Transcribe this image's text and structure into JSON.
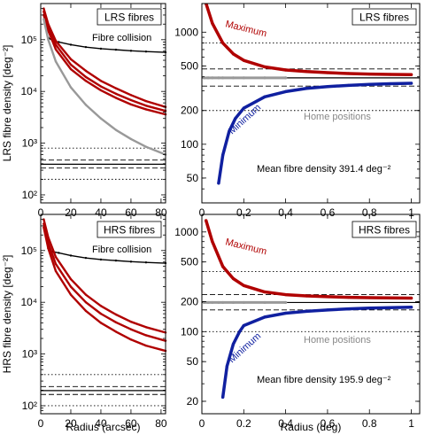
{
  "chart_data": [
    {
      "panel": "top-left",
      "type": "line",
      "label": "LRS fibres",
      "ylabel": "LRS fibre density [deg⁻²]",
      "xlabel": "",
      "xlim": [
        0,
        83
      ],
      "ylim": [
        70,
        500000
      ],
      "yscale": "log",
      "xticks": [
        0,
        20,
        40,
        60,
        80
      ],
      "yticks": [
        100,
        1000,
        10000,
        100000
      ],
      "ytick_labels": [
        "10²",
        "10³",
        "10⁴",
        "10⁵"
      ],
      "annotations": [
        {
          "text": "Fibre collision",
          "color": "#000000"
        }
      ],
      "reference_lines": [
        {
          "style": "solid",
          "y": 391.4
        },
        {
          "style": "dashed",
          "y": 330
        },
        {
          "style": "dashed",
          "y": 470
        },
        {
          "style": "dotted",
          "y": 200
        },
        {
          "style": "dotted",
          "y": 800
        }
      ],
      "series": [
        {
          "color": "#000000",
          "x": [
            5,
            8,
            12,
            20,
            30,
            40,
            50,
            60,
            70,
            83
          ],
          "y": [
            110000,
            95000,
            90000,
            80000,
            72000,
            67000,
            64000,
            61000,
            59000,
            57000
          ]
        },
        {
          "color": "#b00000",
          "x": [
            2,
            5,
            10,
            20,
            30,
            40,
            50,
            60,
            70,
            83
          ],
          "y": [
            400000,
            200000,
            95000,
            42000,
            25000,
            16000,
            11500,
            8500,
            6500,
            5000
          ]
        },
        {
          "color": "#b00000",
          "x": [
            2,
            5,
            10,
            20,
            30,
            40,
            50,
            60,
            70,
            83
          ],
          "y": [
            350000,
            170000,
            80000,
            33000,
            19000,
            12500,
            9000,
            6800,
            5300,
            4200
          ]
        },
        {
          "color": "#b00000",
          "x": [
            2,
            5,
            10,
            20,
            30,
            40,
            50,
            60,
            70,
            83
          ],
          "y": [
            300000,
            150000,
            65000,
            27000,
            16000,
            10500,
            7500,
            5600,
            4500,
            3600
          ]
        },
        {
          "color": "#999999",
          "x": [
            2,
            5,
            10,
            20,
            30,
            40,
            50,
            60,
            70,
            83
          ],
          "y": [
            250000,
            100000,
            38000,
            12000,
            5500,
            3000,
            1800,
            1200,
            850,
            600
          ]
        }
      ]
    },
    {
      "panel": "top-right",
      "type": "scatter",
      "label": "LRS fibres",
      "ylabel": "",
      "xlabel": "",
      "xlim": [
        0,
        1.04
      ],
      "ylim": [
        30,
        1800
      ],
      "yscale": "log",
      "xticks": [
        0,
        0.2,
        0.4,
        0.6,
        0.8,
        1
      ],
      "yticks": [
        50,
        100,
        200,
        500,
        1000
      ],
      "ytick_labels": [
        "50",
        "100",
        "200",
        "500",
        "1000"
      ],
      "annotations": [
        {
          "text": "Maximum",
          "color": "#b00000"
        },
        {
          "text": "Minimum",
          "color": "#1020a0"
        },
        {
          "text": "Home positions",
          "color": "#888888"
        },
        {
          "text": "Mean fibre density 391.4 deg⁻²",
          "color": "#000000"
        }
      ],
      "reference_lines": [
        {
          "style": "solid",
          "y": 391.4
        },
        {
          "style": "dashed",
          "y": 330
        },
        {
          "style": "dashed",
          "y": 470
        },
        {
          "style": "dotted",
          "y": 200
        },
        {
          "style": "dotted",
          "y": 800
        }
      ],
      "series": [
        {
          "color": "#b00000",
          "x": [
            0.02,
            0.05,
            0.1,
            0.15,
            0.2,
            0.3,
            0.4,
            0.5,
            0.6,
            0.7,
            0.8,
            0.9,
            1.0
          ],
          "y": [
            1800,
            1200,
            800,
            640,
            560,
            490,
            460,
            445,
            435,
            428,
            423,
            420,
            418
          ]
        },
        {
          "color": "#999999",
          "x": [
            0.01,
            0.03,
            0.05,
            0.08,
            0.1,
            0.15,
            0.2,
            0.3,
            0.4
          ],
          "y": [
            391,
            391,
            391,
            391,
            391,
            391,
            391,
            391,
            391
          ]
        },
        {
          "color": "#1020a0",
          "x": [
            0.08,
            0.1,
            0.13,
            0.16,
            0.2,
            0.3,
            0.4,
            0.5,
            0.6,
            0.7,
            0.8,
            0.9,
            1.0
          ],
          "y": [
            45,
            80,
            130,
            170,
            210,
            265,
            295,
            315,
            327,
            335,
            342,
            347,
            350
          ]
        }
      ]
    },
    {
      "panel": "bottom-left",
      "type": "line",
      "label": "HRS fibres",
      "ylabel": "HRS fibre density [deg⁻²]",
      "xlabel": "Radius (arcsec)",
      "xlim": [
        0,
        83
      ],
      "ylim": [
        70,
        500000
      ],
      "yscale": "log",
      "xticks": [
        0,
        20,
        40,
        60,
        80
      ],
      "yticks": [
        100,
        1000,
        10000,
        100000
      ],
      "ytick_labels": [
        "10²",
        "10³",
        "10⁴",
        "10⁵"
      ],
      "annotations": [
        {
          "text": "Fibre collision",
          "color": "#000000"
        }
      ],
      "reference_lines": [
        {
          "style": "solid",
          "y": 195.9
        },
        {
          "style": "dashed",
          "y": 165
        },
        {
          "style": "dashed",
          "y": 235
        },
        {
          "style": "dotted",
          "y": 100
        },
        {
          "style": "dotted",
          "y": 400
        }
      ],
      "series": [
        {
          "color": "#000000",
          "x": [
            5,
            8,
            12,
            20,
            30,
            40,
            50,
            60,
            70,
            83
          ],
          "y": [
            110000,
            95000,
            90000,
            80000,
            72000,
            67000,
            64000,
            61000,
            59000,
            57000
          ]
        },
        {
          "color": "#b00000",
          "x": [
            2,
            5,
            10,
            20,
            30,
            40,
            50,
            60,
            70,
            83
          ],
          "y": [
            400000,
            180000,
            75000,
            28000,
            14000,
            8500,
            5800,
            4200,
            3300,
            2600
          ]
        },
        {
          "color": "#b00000",
          "x": [
            2,
            5,
            10,
            20,
            30,
            40,
            50,
            60,
            70,
            83
          ],
          "y": [
            330000,
            140000,
            55000,
            20000,
            10000,
            6000,
            4100,
            3000,
            2300,
            1800
          ]
        },
        {
          "color": "#b00000",
          "x": [
            2,
            5,
            10,
            20,
            30,
            40,
            50,
            60,
            70,
            83
          ],
          "y": [
            280000,
            110000,
            40000,
            14000,
            6800,
            4000,
            2700,
            1900,
            1450,
            1150
          ]
        }
      ]
    },
    {
      "panel": "bottom-right",
      "type": "scatter",
      "label": "HRS fibres",
      "ylabel": "",
      "xlabel": "Radius (deg)",
      "xlim": [
        0,
        1.04
      ],
      "ylim": [
        15,
        1500
      ],
      "yscale": "log",
      "xticks": [
        0,
        0.2,
        0.4,
        0.6,
        0.8,
        1
      ],
      "yticks": [
        20,
        50,
        100,
        200,
        500,
        1000
      ],
      "ytick_labels": [
        "20",
        "50",
        "100",
        "200",
        "500",
        "1000"
      ],
      "annotations": [
        {
          "text": "Maximum",
          "color": "#b00000"
        },
        {
          "text": "Minimum",
          "color": "#1020a0"
        },
        {
          "text": "Home positions",
          "color": "#888888"
        },
        {
          "text": "Mean fibre density 195.9 deg⁻²",
          "color": "#000000"
        }
      ],
      "reference_lines": [
        {
          "style": "solid",
          "y": 195.9
        },
        {
          "style": "dashed",
          "y": 165
        },
        {
          "style": "dashed",
          "y": 235
        },
        {
          "style": "dotted",
          "y": 100
        },
        {
          "style": "dotted",
          "y": 400
        }
      ],
      "series": [
        {
          "color": "#b00000",
          "x": [
            0.02,
            0.05,
            0.1,
            0.15,
            0.2,
            0.3,
            0.4,
            0.5,
            0.6,
            0.7,
            0.8,
            0.9,
            1.0
          ],
          "y": [
            1300,
            800,
            450,
            340,
            290,
            250,
            235,
            228,
            224,
            221,
            219,
            218,
            217
          ]
        },
        {
          "color": "#999999",
          "x": [
            0.01,
            0.03,
            0.05,
            0.08,
            0.1,
            0.15,
            0.2,
            0.3,
            0.4
          ],
          "y": [
            196,
            196,
            196,
            196,
            196,
            196,
            196,
            196,
            196
          ]
        },
        {
          "color": "#1020a0",
          "x": [
            0.1,
            0.12,
            0.15,
            0.18,
            0.2,
            0.3,
            0.4,
            0.5,
            0.6,
            0.7,
            0.8,
            0.9,
            1.0
          ],
          "y": [
            22,
            45,
            75,
            100,
            115,
            140,
            153,
            160,
            165,
            169,
            172,
            174,
            176
          ]
        }
      ]
    }
  ]
}
